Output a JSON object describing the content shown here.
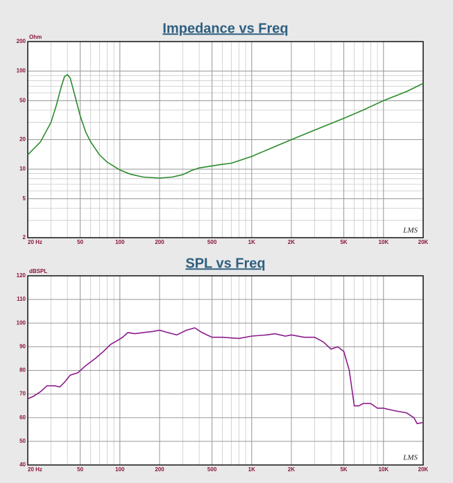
{
  "chart_data": [
    {
      "type": "line",
      "title": "Impedance vs Freq",
      "ylabel": "Ohm",
      "watermark": "LMS",
      "xscale": "log",
      "yscale": "log",
      "grid": true,
      "xlim": [
        20,
        20000
      ],
      "ylim": [
        2,
        200
      ],
      "xticks": [
        {
          "value": 20,
          "label": "20  Hz"
        },
        50,
        100,
        200,
        500,
        {
          "value": 1000,
          "label": "1K"
        },
        {
          "value": 2000,
          "label": "2K"
        },
        {
          "value": 5000,
          "label": "5K"
        },
        {
          "value": 10000,
          "label": "10K"
        },
        {
          "value": 20000,
          "label": "20K"
        }
      ],
      "yticks": [
        2,
        5,
        10,
        20,
        50,
        100,
        200
      ],
      "x": [
        20,
        25,
        30,
        33,
        36,
        38,
        40,
        42,
        45,
        50,
        55,
        60,
        70,
        80,
        100,
        120,
        150,
        200,
        250,
        300,
        350,
        400,
        500,
        600,
        700,
        800,
        1000,
        1500,
        2000,
        3000,
        5000,
        7000,
        10000,
        15000,
        20000
      ],
      "series": [
        {
          "color": "#2a8a2a",
          "values": [
            14,
            19,
            30,
            45,
            70,
            88,
            92,
            85,
            60,
            35,
            24,
            19,
            14,
            11.8,
            9.8,
            8.9,
            8.3,
            8.1,
            8.3,
            8.8,
            9.7,
            10.3,
            10.8,
            11.2,
            11.5,
            12.2,
            13.5,
            17,
            20,
            25,
            33,
            40,
            50,
            62,
            75
          ]
        }
      ]
    },
    {
      "type": "line",
      "title": "SPL vs Freq",
      "ylabel": "dBSPL",
      "watermark": "LMS",
      "xscale": "log",
      "yscale": "linear",
      "grid": true,
      "xlim": [
        20,
        20000
      ],
      "ylim": [
        40,
        120
      ],
      "xticks": [
        {
          "value": 20,
          "label": "20  Hz"
        },
        50,
        100,
        200,
        500,
        {
          "value": 1000,
          "label": "1K"
        },
        {
          "value": 2000,
          "label": "2K"
        },
        {
          "value": 5000,
          "label": "5K"
        },
        {
          "value": 10000,
          "label": "10K"
        },
        {
          "value": 20000,
          "label": "20K"
        }
      ],
      "yticks": [
        40,
        50,
        60,
        70,
        80,
        90,
        100,
        110,
        120
      ],
      "x": [
        20,
        22,
        25,
        28,
        32,
        35,
        38,
        42,
        48,
        55,
        65,
        75,
        85,
        95,
        105,
        115,
        130,
        150,
        180,
        200,
        230,
        270,
        320,
        370,
        420,
        500,
        600,
        800,
        1000,
        1300,
        1500,
        1800,
        2000,
        2500,
        3000,
        3500,
        4000,
        4500,
        5000,
        5500,
        6000,
        6500,
        7000,
        8000,
        9000,
        10000,
        12000,
        15000,
        17000,
        18000,
        20000
      ],
      "series": [
        {
          "color": "#8b1a8b",
          "values": [
            68,
            69,
            71,
            73.5,
            73.5,
            73,
            75,
            78,
            79,
            82,
            85,
            88,
            91,
            92.5,
            94,
            96,
            95.5,
            96,
            96.5,
            97,
            96,
            95,
            97,
            98,
            96,
            94,
            94,
            93.5,
            94.5,
            95,
            95.5,
            94.5,
            95,
            94,
            94,
            92,
            89,
            90,
            88,
            80,
            65,
            65,
            66,
            66,
            64,
            64,
            63,
            62,
            60,
            57.5,
            58
          ]
        }
      ]
    }
  ]
}
